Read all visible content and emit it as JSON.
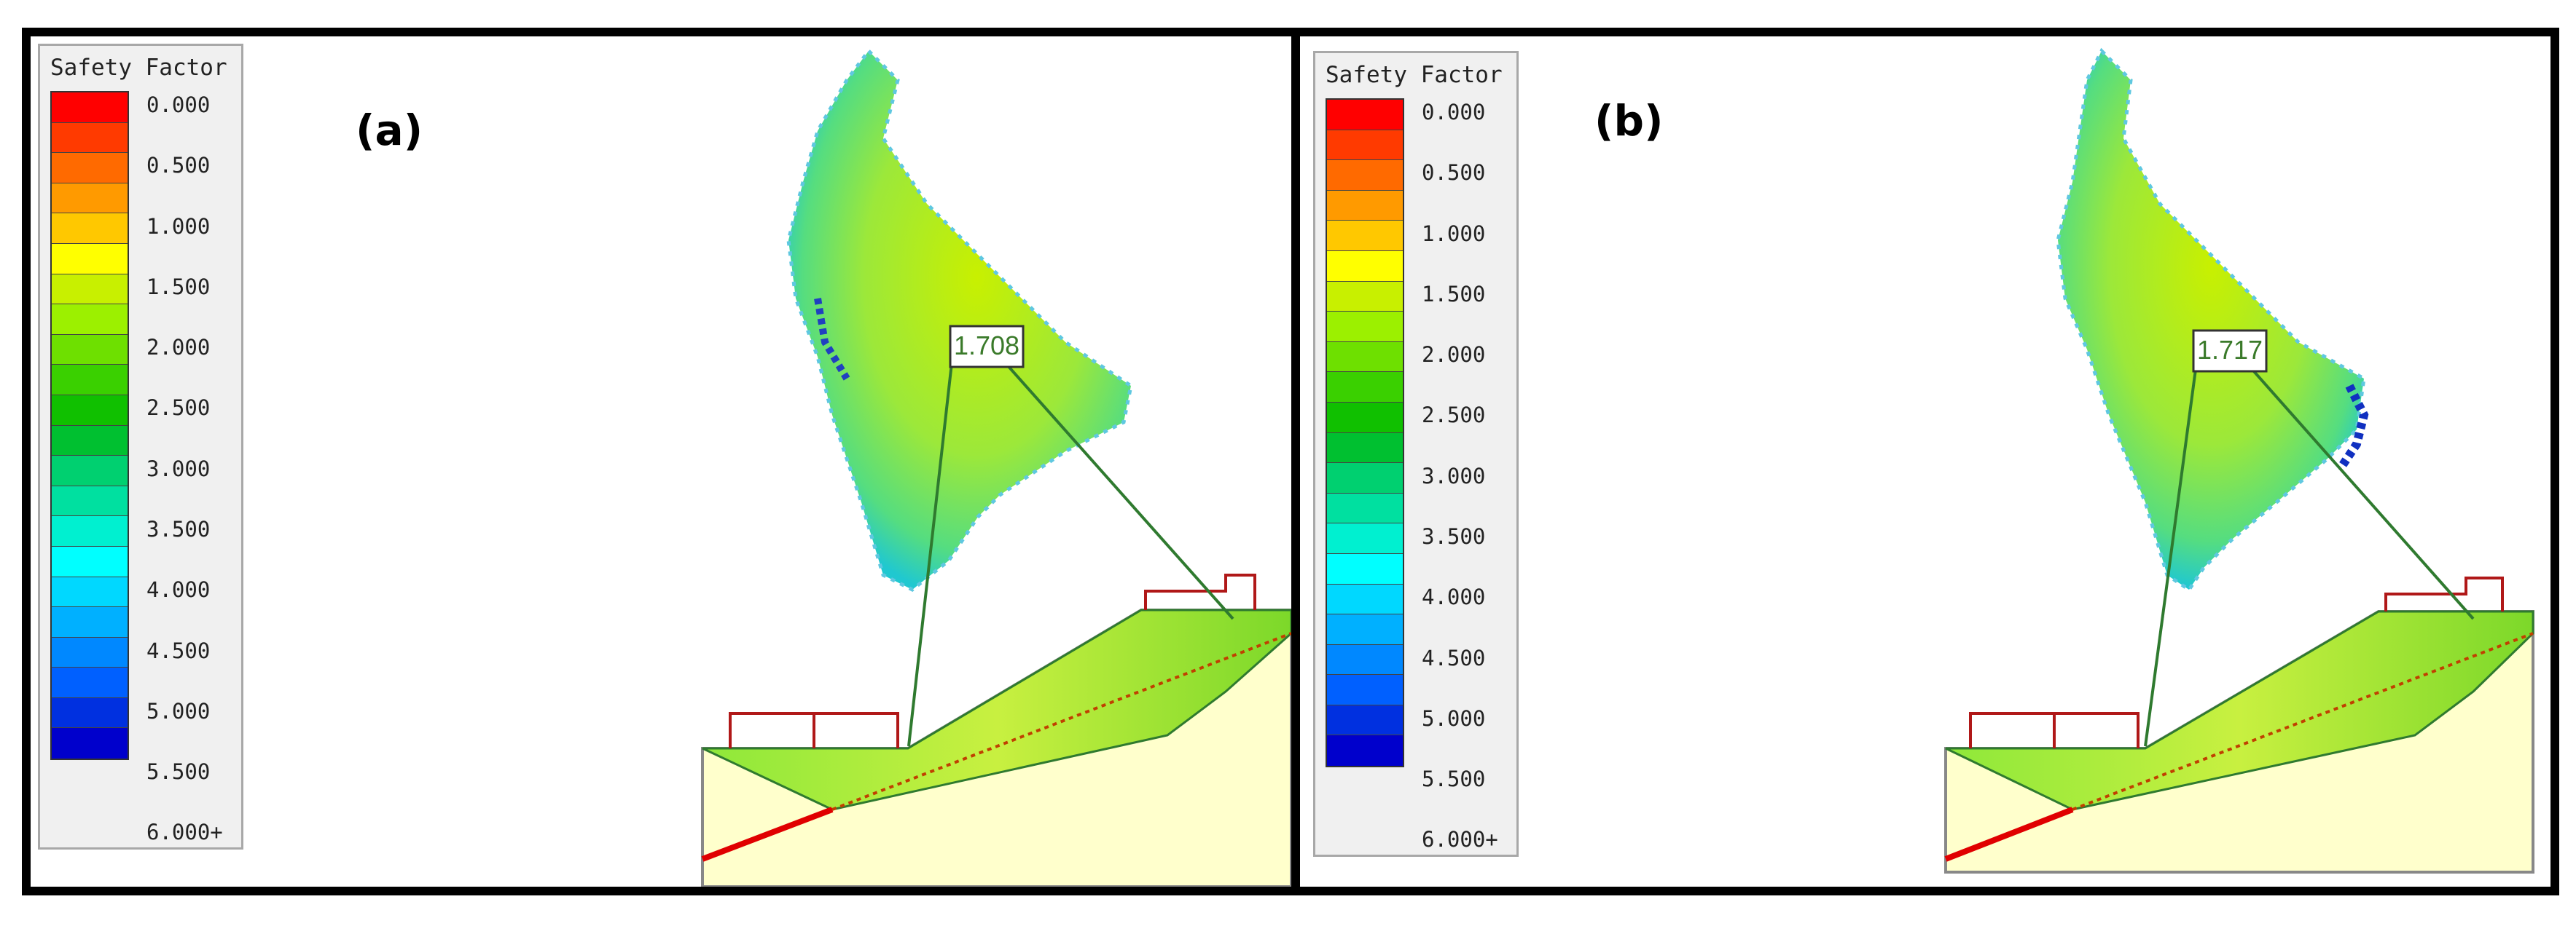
{
  "panels": [
    {
      "letter": "(a)",
      "min_fs": "1.708"
    },
    {
      "letter": "(b)",
      "min_fs": "1.717"
    }
  ],
  "legend": {
    "title": "Safety Factor",
    "labels": [
      "0.000",
      "0.500",
      "1.000",
      "1.500",
      "2.000",
      "2.500",
      "3.000",
      "3.500",
      "4.000",
      "4.500",
      "5.000",
      "5.500",
      "6.000+"
    ],
    "colors": [
      "#ff0000",
      "#ff3a00",
      "#ff6a00",
      "#ff9a00",
      "#ffc800",
      "#ffff00",
      "#c8f000",
      "#9cf000",
      "#6ee000",
      "#3ad000",
      "#10c000",
      "#00c030",
      "#00d070",
      "#00e0a0",
      "#00f0d0",
      "#00ffff",
      "#00d8ff",
      "#00b0ff",
      "#0088ff",
      "#0060ff",
      "#0030e0",
      "#0000cc"
    ]
  },
  "colors": {
    "frame": "#000000",
    "slope_fill": "#ffffcc",
    "center_grid": "#a6e84a",
    "support": "#b01818",
    "slip_line": "#2f7a2f"
  }
}
